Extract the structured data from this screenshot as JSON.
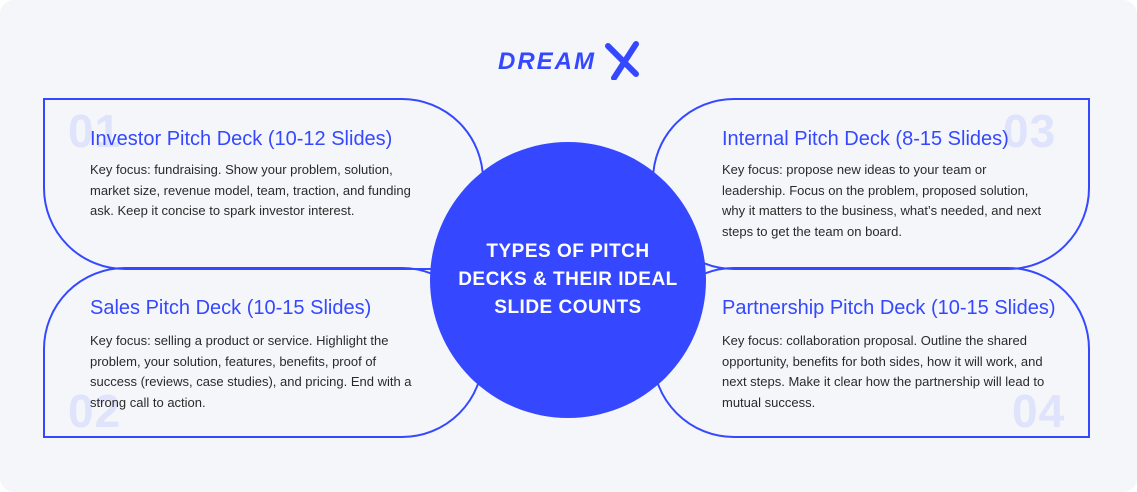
{
  "brand": {
    "logo_text": "DREAMX",
    "color": "#3548ff"
  },
  "center": {
    "title": "TYPES OF PITCH DECKS & THEIR IDEAL SLIDE COUNTS"
  },
  "cards": [
    {
      "number": "01",
      "title": "Investor Pitch Deck (10-12 Slides)",
      "body": "Key focus: fundraising. Show your problem, solution, market size, revenue model, team, traction, and funding ask. Keep it concise to spark investor interest."
    },
    {
      "number": "02",
      "title": "Sales Pitch Deck (10-15 Slides)",
      "body": "Key focus: selling a product or service. Highlight the problem, your solution, features, benefits, proof of success (reviews, case studies), and pricing. End with a strong call to action."
    },
    {
      "number": "03",
      "title": "Internal Pitch Deck (8-15 Slides)",
      "body": "Key focus: propose new ideas to your team or leadership. Focus on the problem, proposed solution, why it matters to the business, what’s needed, and next steps to get the team on board."
    },
    {
      "number": "04",
      "title": "Partnership Pitch Deck (10-15 Slides)",
      "body": "Key focus: collaboration proposal. Outline the shared opportunity, benefits for both sides, how it will work, and next steps. Make it clear how the partnership will lead to mutual success."
    }
  ]
}
